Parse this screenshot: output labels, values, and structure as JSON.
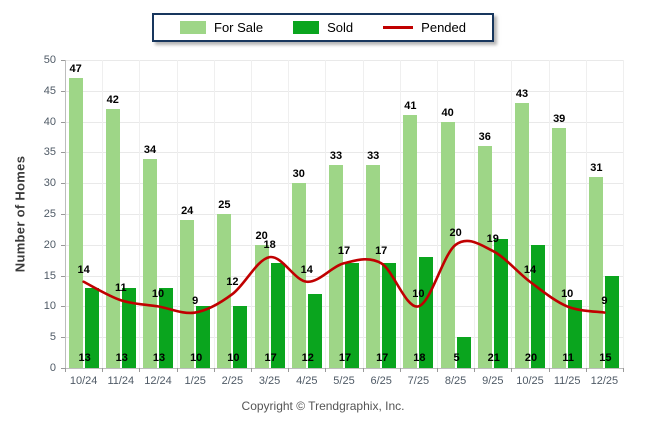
{
  "legend": {
    "for_sale": "For Sale",
    "sold": "Sold",
    "pended": "Pended"
  },
  "ylabel": "Number of Homes",
  "footer": "Copyright © Trendgraphix, Inc.",
  "colors": {
    "for_sale": "#9ED687",
    "sold": "#0AA51E",
    "pended": "#C00000",
    "legend_border": "#17365D"
  },
  "chart_data": {
    "type": "bar",
    "title": "",
    "xlabel": "",
    "ylabel": "Number of Homes",
    "ylim": [
      0,
      50
    ],
    "ytick_step": 5,
    "grid": true,
    "legend_position": "top",
    "categories": [
      "10/24",
      "11/24",
      "12/24",
      "1/25",
      "2/25",
      "3/25",
      "4/25",
      "5/25",
      "6/25",
      "7/25",
      "8/25",
      "9/25",
      "10/25",
      "11/25",
      "12/25"
    ],
    "series": [
      {
        "name": "For Sale",
        "type": "bar",
        "color_key": "for_sale",
        "values": [
          47,
          42,
          34,
          24,
          25,
          20,
          30,
          33,
          33,
          41,
          40,
          36,
          43,
          39,
          31
        ]
      },
      {
        "name": "Sold",
        "type": "bar",
        "color_key": "sold",
        "values": [
          13,
          13,
          13,
          10,
          10,
          17,
          12,
          17,
          17,
          18,
          5,
          21,
          20,
          11,
          15
        ]
      },
      {
        "name": "Pended",
        "type": "line",
        "color_key": "pended",
        "values": [
          14,
          11,
          10,
          9,
          12,
          18,
          14,
          17,
          17,
          10,
          20,
          19,
          14,
          10,
          9
        ]
      }
    ]
  }
}
